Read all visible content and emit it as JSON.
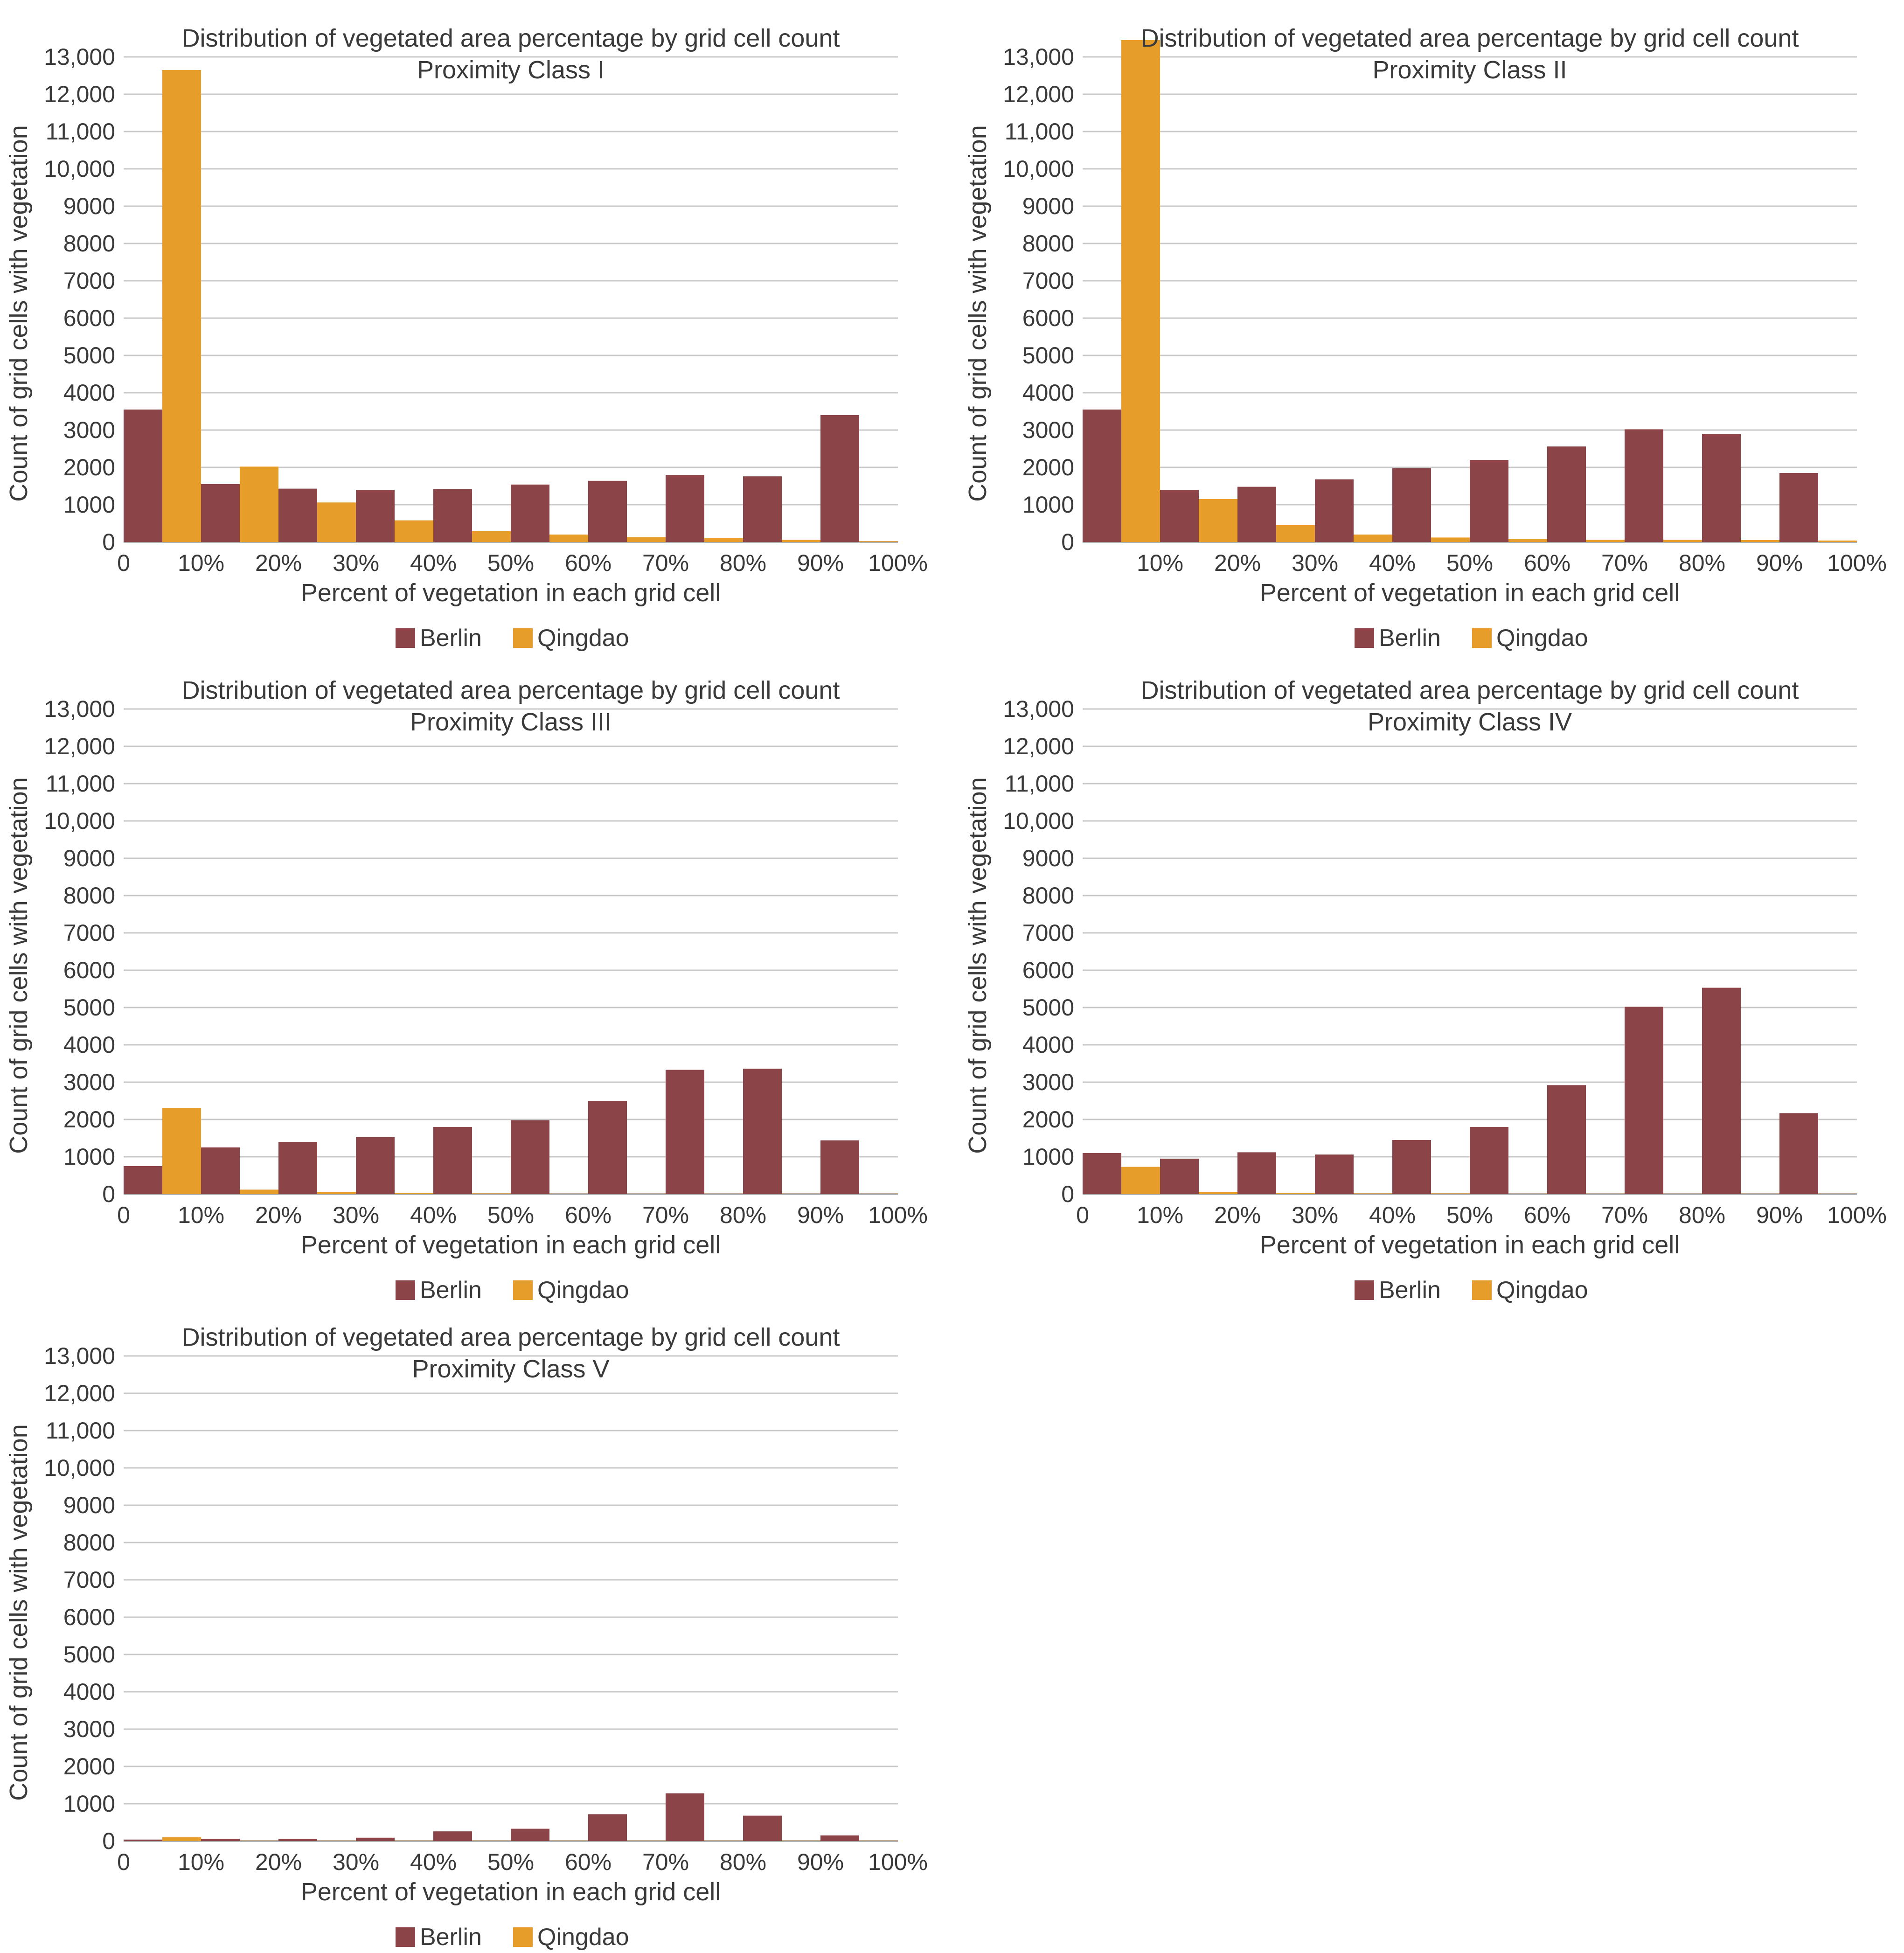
{
  "colors": {
    "berlin": "#8B4448",
    "qingdao": "#E79D2A",
    "grid": "#c8c8c8",
    "axis": "#b0b0b0",
    "text": "#3a3a3a"
  },
  "chart_data": [
    {
      "type": "bar",
      "title": "Distribution of vegetated area percentage by grid cell count",
      "subtitle": "Proximity Class I",
      "xlabel": "Percent of vegetation in each grid cell",
      "ylabel": "Count of grid cells with vegetation",
      "x_ticks": [
        "0",
        "10%",
        "20%",
        "30%",
        "40%",
        "50%",
        "60%",
        "70%",
        "80%",
        "90%",
        "100%"
      ],
      "y_ticks": [
        "0",
        "1000",
        "2000",
        "3000",
        "4000",
        "5000",
        "6000",
        "7000",
        "8000",
        "9000",
        "10,000",
        "11,000",
        "12,000",
        "13,000"
      ],
      "ylim": [
        0,
        13000
      ],
      "grid": true,
      "legend": "bottom",
      "categories": [
        "0-10%",
        "10-20%",
        "20-30%",
        "30-40%",
        "40-50%",
        "50-60%",
        "60-70%",
        "70-80%",
        "80-90%",
        "90-100%"
      ],
      "series": [
        {
          "name": "Berlin",
          "values": [
            3550,
            1550,
            1430,
            1400,
            1420,
            1540,
            1640,
            1800,
            1760,
            3400
          ]
        },
        {
          "name": "Qingdao",
          "values": [
            12650,
            2020,
            1060,
            580,
            300,
            200,
            130,
            100,
            60,
            20
          ]
        }
      ]
    },
    {
      "type": "bar",
      "title": "Distribution of vegetated area percentage by grid cell count",
      "subtitle": "Proximity Class II",
      "xlabel": "Percent of vegetation in each grid cell",
      "ylabel": "Count of grid cells with vegetation",
      "x_ticks": [
        "",
        "10%",
        "20%",
        "30%",
        "40%",
        "50%",
        "60%",
        "70%",
        "80%",
        "90%",
        "100%"
      ],
      "y_ticks": [
        "0",
        "1000",
        "2000",
        "3000",
        "4000",
        "5000",
        "6000",
        "7000",
        "8000",
        "9000",
        "10,000",
        "11,000",
        "12,000",
        "13,000"
      ],
      "ylim": [
        0,
        13000
      ],
      "grid": true,
      "legend": "bottom",
      "categories": [
        "0-10%",
        "10-20%",
        "20-30%",
        "30-40%",
        "40-50%",
        "50-60%",
        "60-70%",
        "70-80%",
        "80-90%",
        "90-100%"
      ],
      "series": [
        {
          "name": "Berlin",
          "values": [
            3550,
            1400,
            1480,
            1680,
            1980,
            2200,
            2560,
            3020,
            2900,
            1850
          ]
        },
        {
          "name": "Qingdao",
          "values": [
            13450,
            1150,
            450,
            200,
            120,
            80,
            60,
            60,
            50,
            40
          ]
        }
      ]
    },
    {
      "type": "bar",
      "title": "Distribution of vegetated area percentage by grid cell count",
      "subtitle": "Proximity Class III",
      "xlabel": "Percent of vegetation in each grid cell",
      "ylabel": "Count of grid cells with vegetation",
      "x_ticks": [
        "0",
        "10%",
        "20%",
        "30%",
        "40%",
        "50%",
        "60%",
        "70%",
        "80%",
        "90%",
        "100%"
      ],
      "y_ticks": [
        "0",
        "1000",
        "2000",
        "3000",
        "4000",
        "5000",
        "6000",
        "7000",
        "8000",
        "9000",
        "10,000",
        "11,000",
        "12,000",
        "13,000"
      ],
      "ylim": [
        0,
        13000
      ],
      "grid": true,
      "legend": "bottom",
      "categories": [
        "0-10%",
        "10-20%",
        "20-30%",
        "30-40%",
        "40-50%",
        "50-60%",
        "60-70%",
        "70-80%",
        "80-90%",
        "90-100%"
      ],
      "series": [
        {
          "name": "Berlin",
          "values": [
            750,
            1250,
            1400,
            1530,
            1800,
            1980,
            2500,
            3330,
            3360,
            1440
          ]
        },
        {
          "name": "Qingdao",
          "values": [
            2300,
            120,
            60,
            30,
            20,
            10,
            10,
            10,
            10,
            10
          ]
        }
      ]
    },
    {
      "type": "bar",
      "title": "Distribution of vegetated area percentage by grid cell count",
      "subtitle": "Proximity Class IV",
      "xlabel": "Percent of vegetation in each grid cell",
      "ylabel": "Count of grid cells with vegetation",
      "x_ticks": [
        "0",
        "10%",
        "20%",
        "30%",
        "40%",
        "50%",
        "60%",
        "70%",
        "80%",
        "90%",
        "100%"
      ],
      "y_ticks": [
        "0",
        "1000",
        "2000",
        "3000",
        "4000",
        "5000",
        "6000",
        "7000",
        "8000",
        "9000",
        "10,000",
        "11,000",
        "12,000",
        "13,000"
      ],
      "ylim": [
        0,
        13000
      ],
      "grid": true,
      "legend": "bottom",
      "categories": [
        "0-10%",
        "10-20%",
        "20-30%",
        "30-40%",
        "40-50%",
        "50-60%",
        "60-70%",
        "70-80%",
        "80-90%",
        "90-100%"
      ],
      "series": [
        {
          "name": "Berlin",
          "values": [
            1100,
            950,
            1120,
            1060,
            1450,
            1800,
            2920,
            5020,
            5530,
            2170
          ]
        },
        {
          "name": "Qingdao",
          "values": [
            730,
            60,
            30,
            20,
            20,
            10,
            10,
            10,
            10,
            10
          ]
        }
      ]
    },
    {
      "type": "bar",
      "title": "Distribution of vegetated area percentage by grid cell count",
      "subtitle": "Proximity Class V",
      "xlabel": "Percent of vegetation in each grid cell",
      "ylabel": "Count of grid cells with vegetation",
      "x_ticks": [
        "0",
        "10%",
        "20%",
        "30%",
        "40%",
        "50%",
        "60%",
        "70%",
        "80%",
        "90%",
        "100%"
      ],
      "y_ticks": [
        "0",
        "1000",
        "2000",
        "3000",
        "4000",
        "5000",
        "6000",
        "7000",
        "8000",
        "9000",
        "10,000",
        "11,000",
        "12,000",
        "13,000"
      ],
      "ylim": [
        0,
        13000
      ],
      "grid": true,
      "legend": "bottom",
      "categories": [
        "0-10%",
        "10-20%",
        "20-30%",
        "30-40%",
        "40-50%",
        "50-60%",
        "60-70%",
        "70-80%",
        "80-90%",
        "90-100%"
      ],
      "series": [
        {
          "name": "Berlin",
          "values": [
            40,
            60,
            60,
            90,
            260,
            330,
            720,
            1280,
            680,
            150
          ]
        },
        {
          "name": "Qingdao",
          "values": [
            100,
            10,
            10,
            10,
            10,
            10,
            10,
            10,
            10,
            10
          ]
        }
      ]
    }
  ]
}
